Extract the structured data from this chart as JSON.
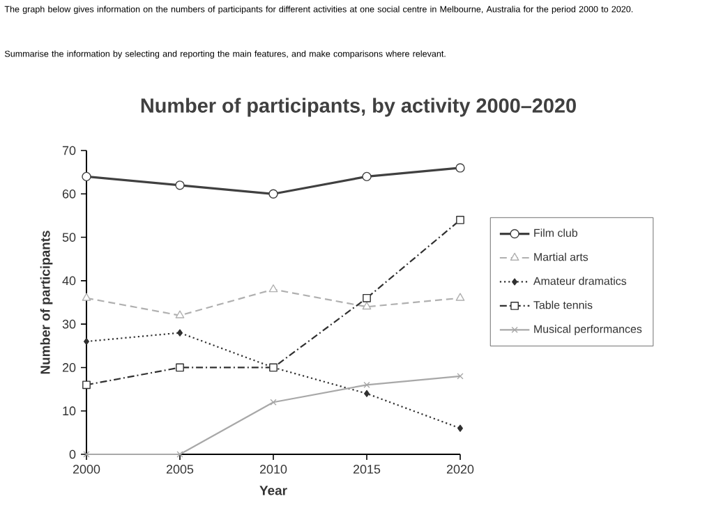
{
  "chart_data": {
    "type": "line",
    "title": "Number of participants, by activity 2000–2020",
    "annotations": [
      "The graph below gives information on the numbers of participants for different activities at one social centre in Melbourne, Australia for the period 2000 to 2020.",
      "Summarise the information by selecting and reporting the main features, and make comparisons where relevant."
    ],
    "xlabel": "Year",
    "ylabel": "Number of participants",
    "x": [
      2000,
      2005,
      2010,
      2015,
      2020
    ],
    "xlim": [
      2000,
      2020
    ],
    "xticks": [
      2000,
      2005,
      2010,
      2015,
      2020
    ],
    "ylim": [
      0,
      70
    ],
    "yticks": [
      0,
      10,
      20,
      30,
      40,
      50,
      60,
      70
    ],
    "legend": "right",
    "series": [
      {
        "name": "Film club",
        "color": "#404040",
        "marker": "circle",
        "line_style": "solid",
        "values": [
          64,
          62,
          60,
          64,
          66
        ]
      },
      {
        "name": "Martial arts",
        "color": "#b0b0b0",
        "marker": "triangle",
        "line_style": "dashed",
        "values": [
          36,
          32,
          38,
          34,
          36
        ]
      },
      {
        "name": "Amateur dramatics",
        "color": "#303030",
        "marker": "diamond",
        "line_style": "dotted",
        "values": [
          26,
          28,
          20,
          14,
          6
        ]
      },
      {
        "name": "Table tennis",
        "color": "#303030",
        "marker": "square",
        "line_style": "dashdot",
        "values": [
          16,
          20,
          20,
          36,
          54
        ]
      },
      {
        "name": "Musical performances",
        "color": "#a8a8a8",
        "marker": "cross",
        "line_style": "solid",
        "values": [
          0,
          0,
          12,
          16,
          18
        ]
      }
    ]
  }
}
